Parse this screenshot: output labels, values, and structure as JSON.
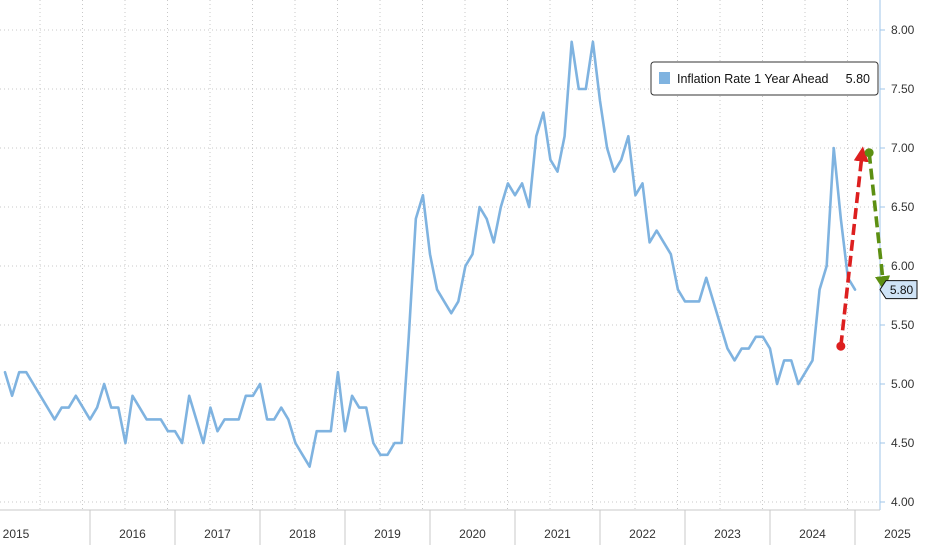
{
  "chart_data": {
    "type": "line",
    "title": "",
    "xlabel": "",
    "ylabel": "",
    "ylim": [
      4.0,
      8.0
    ],
    "y_ticks": [
      "4.00",
      "4.50",
      "5.00",
      "5.50",
      "6.00",
      "6.50",
      "7.00",
      "7.50",
      "8.00"
    ],
    "x_year_labels": [
      "2015",
      "2016",
      "2017",
      "2018",
      "2019",
      "2020",
      "2021",
      "2022",
      "2023",
      "2024",
      "2025"
    ],
    "grid": true,
    "legend_position": "top-right",
    "series": [
      {
        "name": "Inflation Rate 1 Year Ahead",
        "color": "#7fb3e0",
        "last_value": "5.80",
        "x_start": "2015-01",
        "frequency": "monthly",
        "values": [
          5.1,
          4.9,
          5.1,
          5.1,
          5.0,
          4.9,
          4.8,
          4.7,
          4.8,
          4.8,
          4.9,
          4.8,
          4.7,
          4.8,
          5.0,
          4.8,
          4.8,
          4.5,
          4.9,
          4.8,
          4.7,
          4.7,
          4.7,
          4.6,
          4.6,
          4.5,
          4.9,
          4.7,
          4.5,
          4.8,
          4.6,
          4.7,
          4.7,
          4.7,
          4.9,
          4.9,
          5.0,
          4.7,
          4.7,
          4.8,
          4.7,
          4.5,
          4.4,
          4.3,
          4.6,
          4.6,
          4.6,
          5.1,
          4.6,
          4.9,
          4.8,
          4.8,
          4.5,
          4.4,
          4.4,
          4.5,
          4.5,
          5.4,
          6.4,
          6.6,
          6.1,
          5.8,
          5.7,
          5.6,
          5.7,
          6.0,
          6.1,
          6.5,
          6.4,
          6.2,
          6.5,
          6.7,
          6.6,
          6.7,
          6.5,
          7.1,
          7.3,
          6.9,
          6.8,
          7.1,
          7.9,
          7.5,
          7.5,
          7.9,
          7.4,
          7.0,
          6.8,
          6.9,
          7.1,
          6.6,
          6.7,
          6.2,
          6.3,
          6.2,
          6.1,
          5.8,
          5.7,
          5.7,
          5.7,
          5.9,
          5.7,
          5.5,
          5.3,
          5.2,
          5.3,
          5.3,
          5.4,
          5.4,
          5.3,
          5.0,
          5.2,
          5.2,
          5.0,
          5.1,
          5.2,
          5.8,
          6.0,
          7.0,
          6.4,
          5.9,
          5.8
        ]
      }
    ],
    "annotations": [
      {
        "kind": "arrow",
        "color": "#dd1f1f",
        "from": {
          "x": "2024-11",
          "y": 5.32
        },
        "to": {
          "x": "2025-02",
          "y": 6.95
        }
      },
      {
        "kind": "arrow",
        "color": "#5c8f12",
        "from": {
          "x": "2025-03",
          "y": 6.96
        },
        "to": {
          "x": "2025-05",
          "y": 5.85
        }
      }
    ]
  },
  "legend": {
    "label": "Inflation Rate 1 Year Ahead",
    "value": "5.80"
  },
  "last_value_tag": "5.80"
}
